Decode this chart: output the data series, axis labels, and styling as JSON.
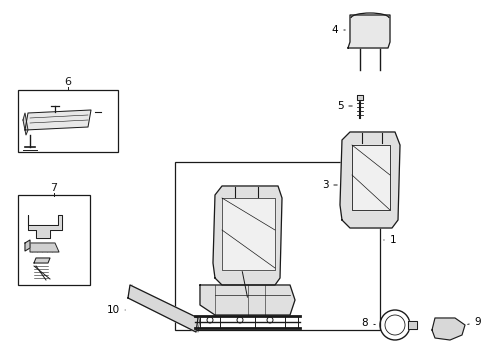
{
  "background_color": "#ffffff",
  "line_color": "#1a1a1a",
  "figsize": [
    4.89,
    3.6
  ],
  "dpi": 100,
  "lw": 0.8
}
